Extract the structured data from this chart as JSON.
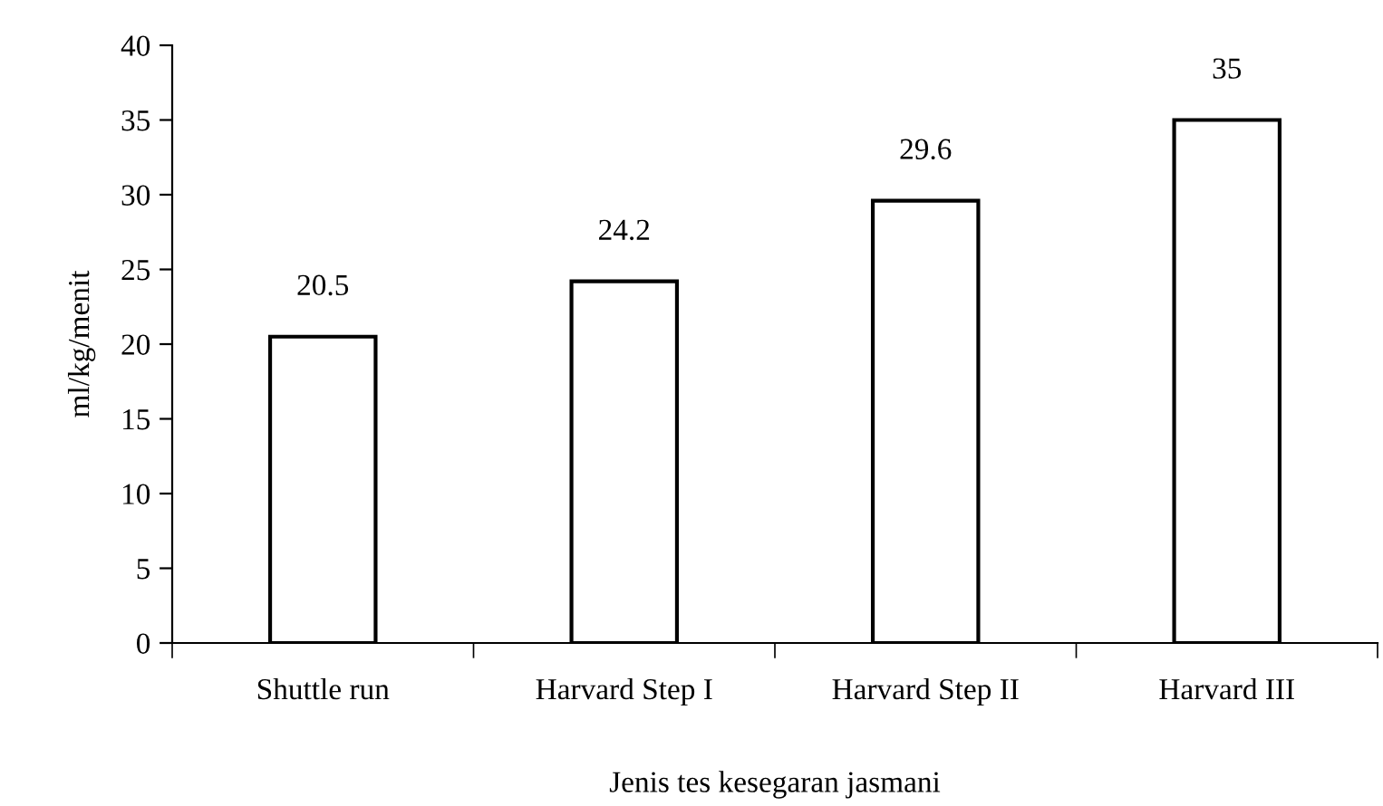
{
  "chart_data": {
    "type": "bar",
    "xlabel": "Jenis tes kesegaran jasmani",
    "ylabel": "ml/kg/menit",
    "categories": [
      "Shuttle run",
      "Harvard Step I",
      "Harvard Step II",
      "Harvard III"
    ],
    "values": [
      20.5,
      24.2,
      29.6,
      35
    ],
    "color": "#ffffff",
    "ylim": [
      0,
      40
    ],
    "yticks": [
      0,
      5,
      10,
      15,
      20,
      25,
      30,
      35,
      40
    ],
    "data_labels": true,
    "grid": false
  }
}
